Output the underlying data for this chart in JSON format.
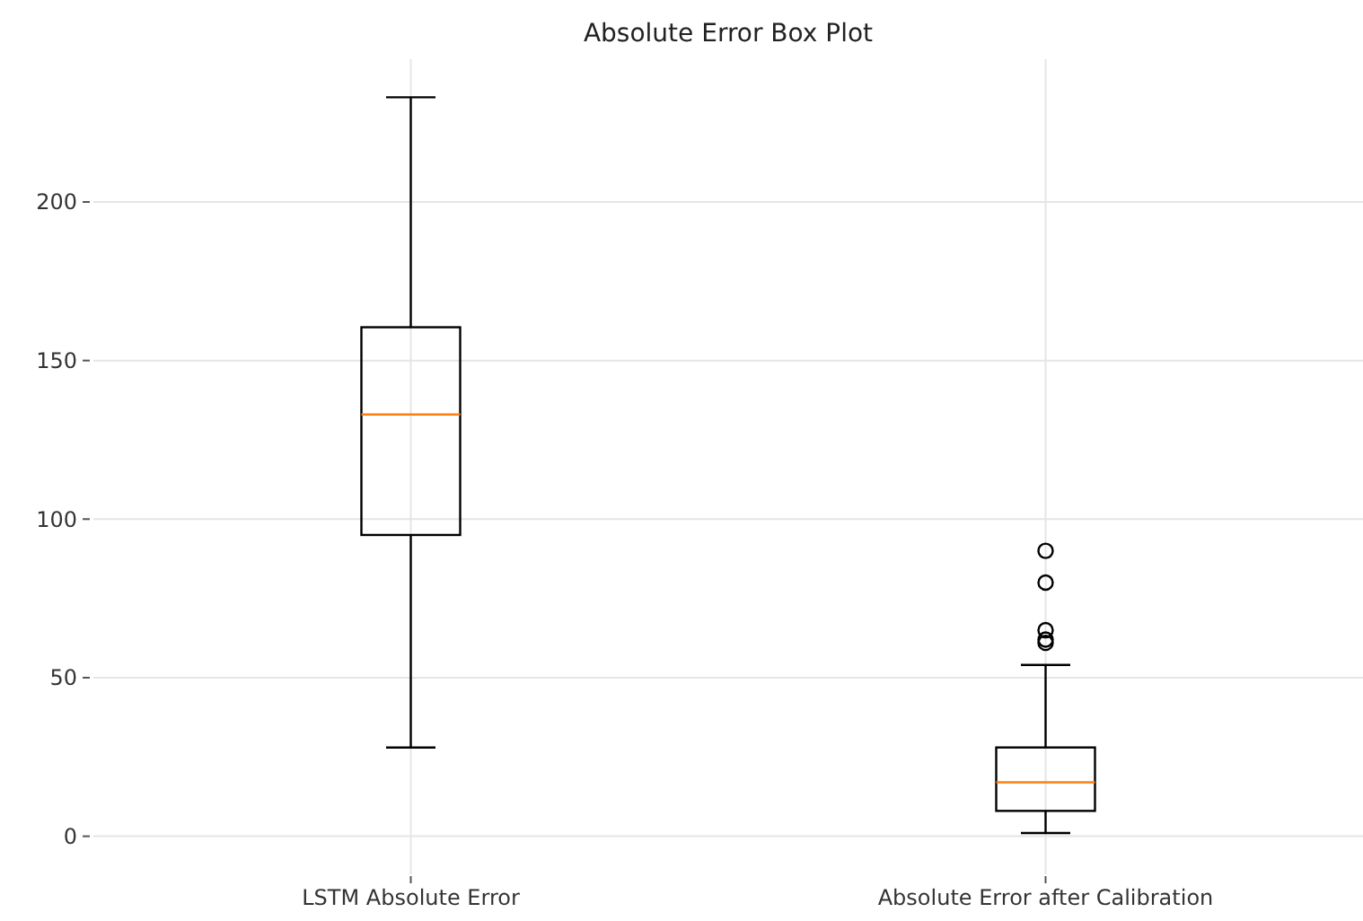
{
  "chart_data": {
    "type": "box",
    "title": "Absolute Error Box Plot",
    "categories": [
      "LSTM Absolute Error",
      "Absolute Error after Calibration"
    ],
    "boxes": [
      {
        "low": 28,
        "q1": 95,
        "median": 133,
        "q3": 160.5,
        "high": 233
      },
      {
        "low": 1,
        "q1": 8,
        "median": 17,
        "q3": 28,
        "high": 54,
        "outliers": [
          90,
          80,
          65,
          62,
          61
        ]
      }
    ],
    "color": "#000000",
    "ylim": [
      -12,
      245
    ],
    "yticks": [
      0,
      50,
      100,
      150,
      200
    ],
    "grid": true
  }
}
